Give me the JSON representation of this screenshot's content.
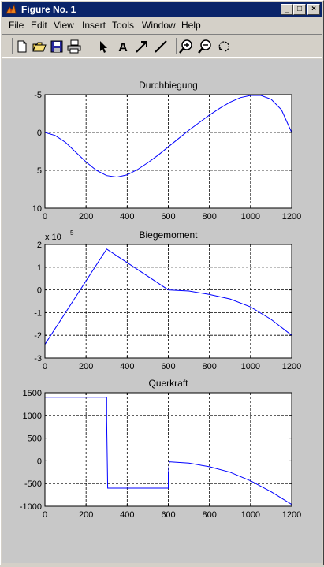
{
  "window": {
    "title": "Figure No. 1",
    "controls": {
      "minimize": "_",
      "maximize": "□",
      "close": "×"
    }
  },
  "menu": [
    "File",
    "Edit",
    "View",
    "Insert",
    "Tools",
    "Window",
    "Help"
  ],
  "toolbar": {
    "icons": [
      "new-file-icon",
      "open-folder-icon",
      "save-icon",
      "print-icon",
      "select-arrow-icon",
      "insert-text-icon",
      "insert-arrow-icon",
      "insert-line-icon",
      "zoom-in-icon",
      "zoom-out-icon",
      "rotate-3d-icon"
    ],
    "text_tool_glyph": "A"
  },
  "colors": {
    "plot_line": "#0000ff",
    "figure_bg": "#c8c8c8",
    "titlebar": "#0a246a"
  },
  "chart_data": [
    {
      "type": "line",
      "title": "Durchbiegung",
      "xlim": [
        0,
        1200
      ],
      "ylim": [
        -5,
        10
      ],
      "y_reversed": true,
      "grid": true,
      "xticks": [
        "0",
        "200",
        "400",
        "600",
        "800",
        "1000",
        "1200"
      ],
      "yticks": [
        "-5",
        "0",
        "5",
        "10"
      ],
      "x": [
        0,
        50,
        100,
        150,
        200,
        250,
        300,
        350,
        400,
        450,
        500,
        550,
        600,
        650,
        700,
        750,
        800,
        850,
        900,
        950,
        1000,
        1050,
        1100,
        1150,
        1200
      ],
      "y": [
        0,
        0.4,
        1.3,
        2.6,
        3.9,
        5.0,
        5.7,
        5.9,
        5.6,
        4.9,
        4.0,
        3.0,
        1.9,
        0.8,
        -0.3,
        -1.3,
        -2.3,
        -3.2,
        -4.0,
        -4.6,
        -4.9,
        -4.9,
        -4.4,
        -3.0,
        0
      ]
    },
    {
      "type": "line",
      "title": "Biegemoment",
      "exponent_label": "x 10",
      "exponent_power": "5",
      "xlim": [
        0,
        1200
      ],
      "ylim": [
        -3,
        2
      ],
      "grid": true,
      "xticks": [
        "0",
        "200",
        "400",
        "600",
        "800",
        "1000",
        "1200"
      ],
      "yticks": [
        "2",
        "1",
        "0",
        "-1",
        "-2",
        "-3"
      ],
      "x": [
        0,
        300,
        600,
        700,
        800,
        900,
        1000,
        1100,
        1200
      ],
      "y": [
        -2.4,
        1.8,
        0,
        -0.05,
        -0.2,
        -0.4,
        -0.75,
        -1.3,
        -2.0
      ]
    },
    {
      "type": "line",
      "title": "Querkraft",
      "xlim": [
        0,
        1200
      ],
      "ylim": [
        -1000,
        1500
      ],
      "grid": true,
      "xticks": [
        "0",
        "200",
        "400",
        "600",
        "800",
        "1000",
        "1200"
      ],
      "yticks": [
        "1500",
        "1000",
        "500",
        "0",
        "-500",
        "-1000"
      ],
      "x": [
        0,
        300,
        300,
        305,
        600,
        600,
        605,
        700,
        800,
        900,
        1000,
        1100,
        1200
      ],
      "y": [
        1400,
        1400,
        900,
        -600,
        -600,
        -300,
        -20,
        -50,
        -130,
        -250,
        -440,
        -680,
        -960
      ]
    }
  ]
}
